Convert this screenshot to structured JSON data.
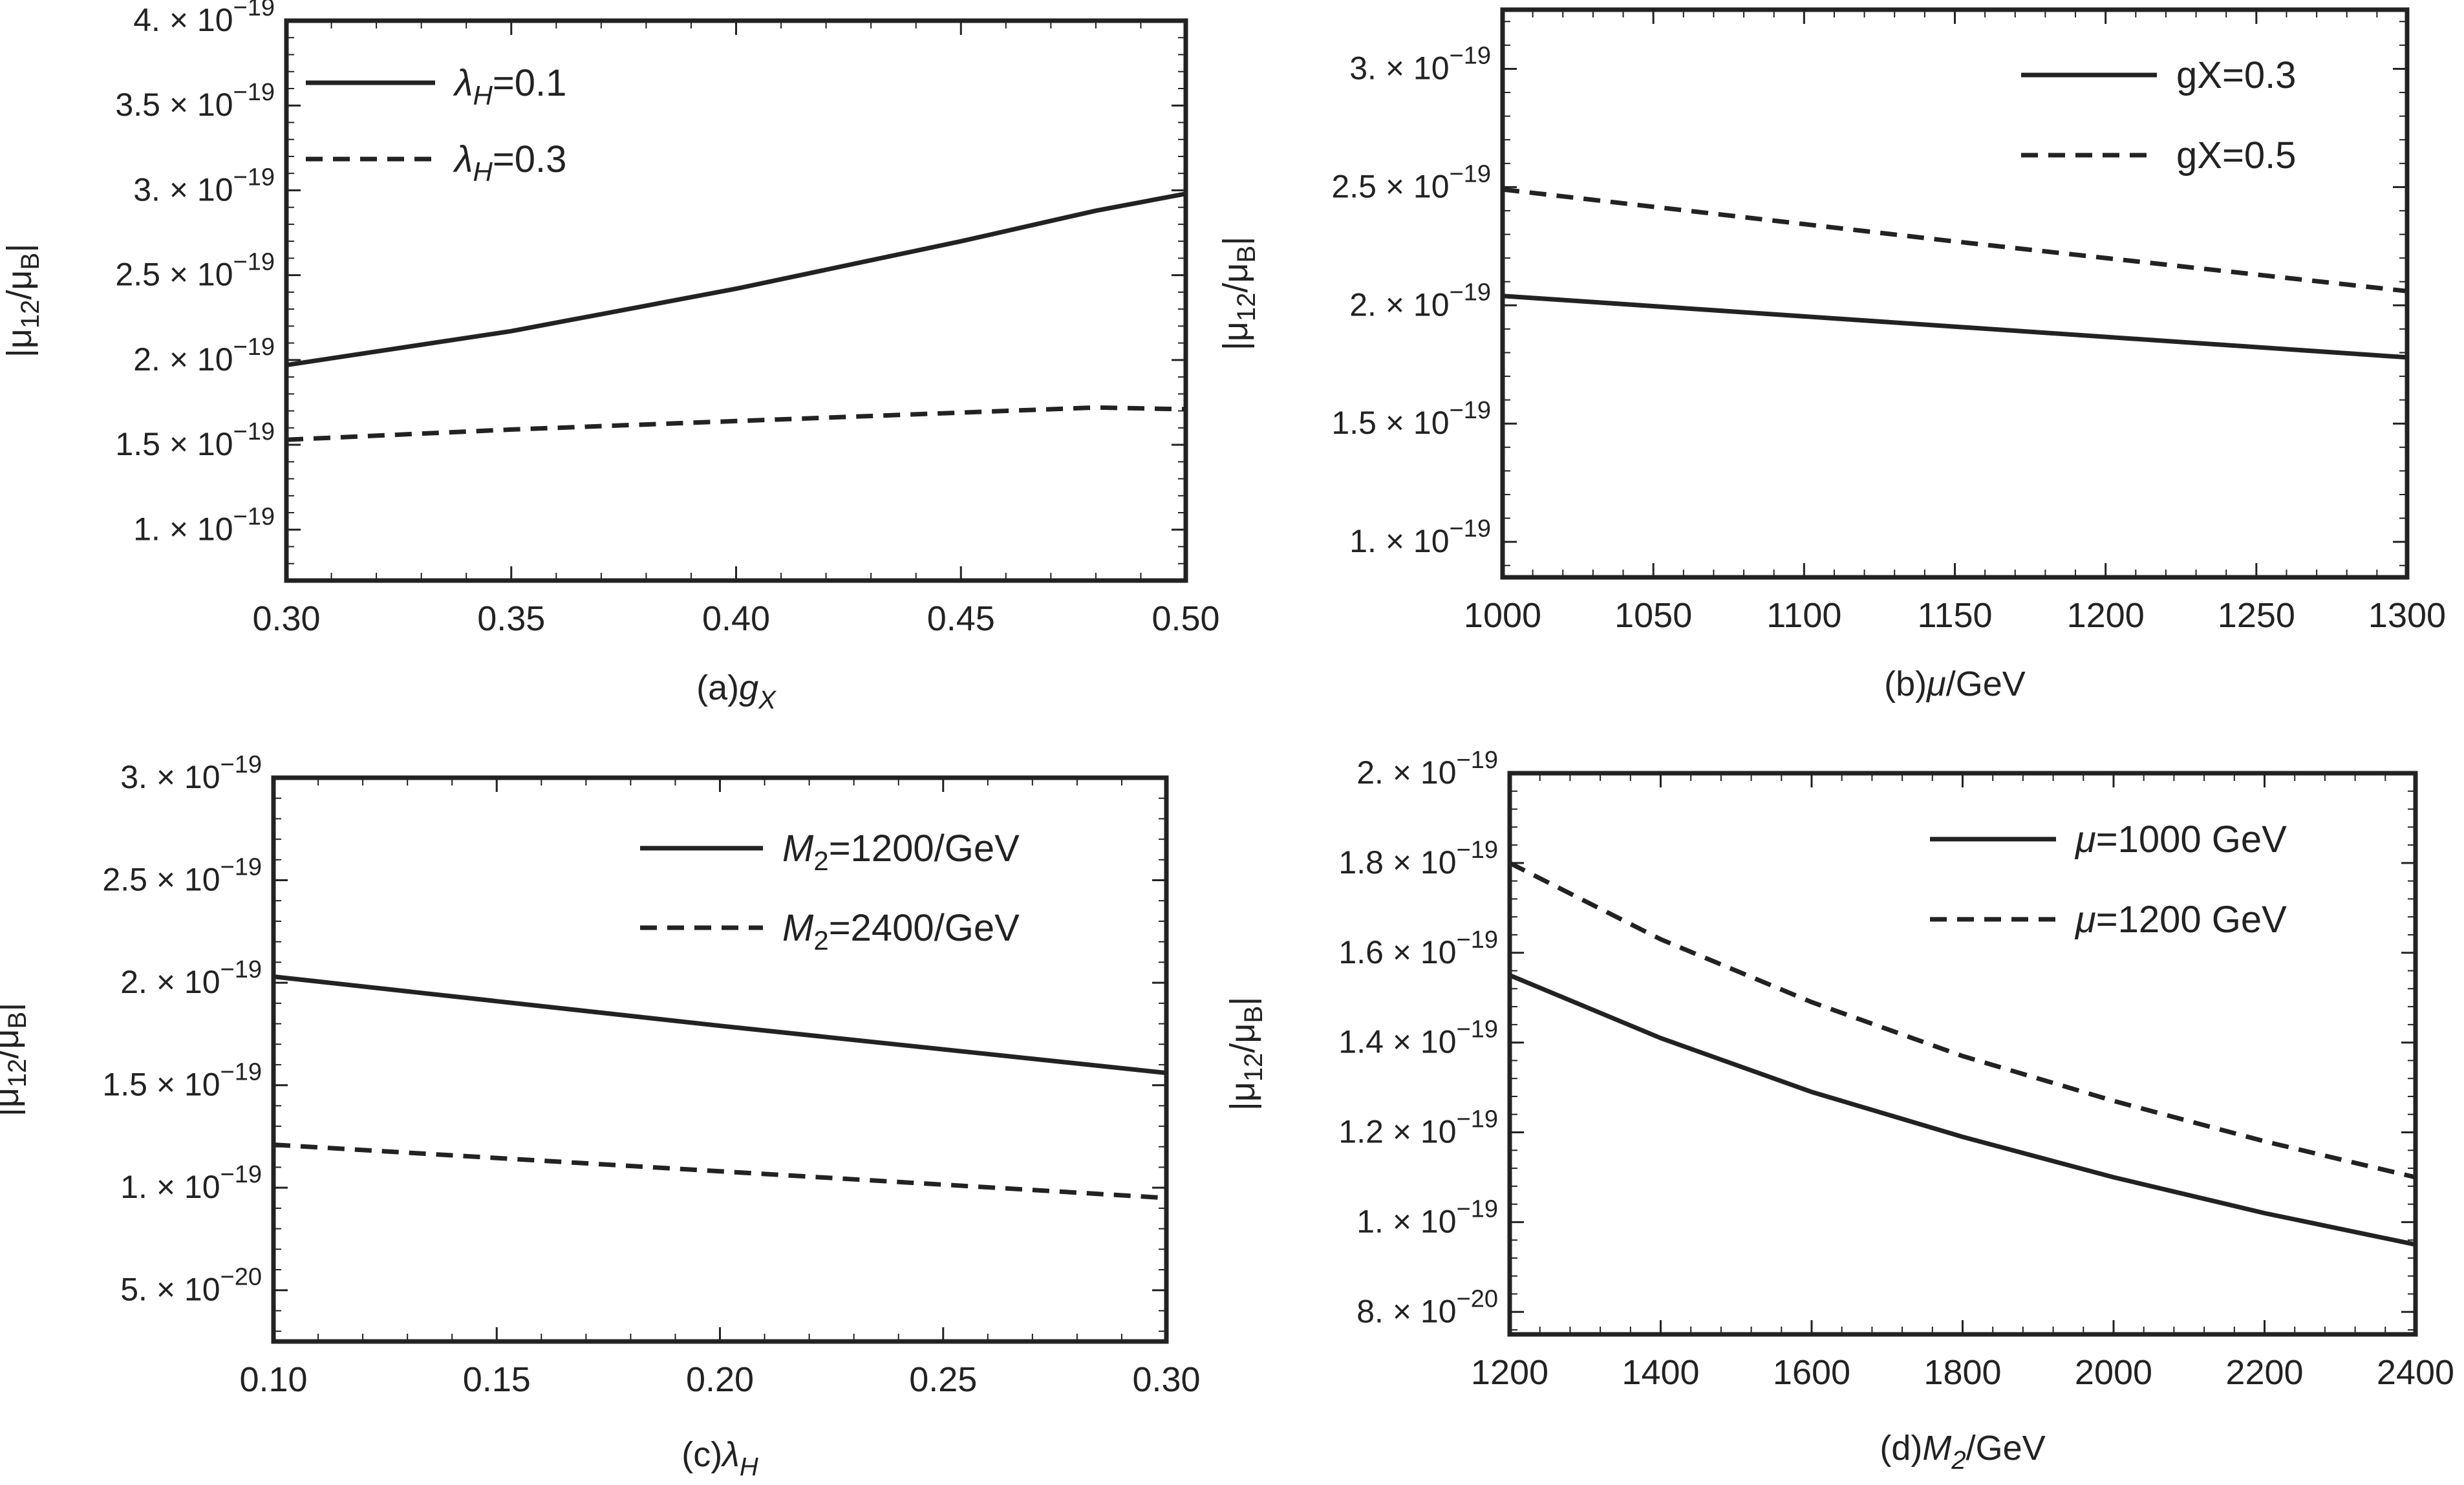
{
  "chart_data": [
    {
      "type": "line",
      "caption": "(a)",
      "xlabel": "g_X",
      "ylabel": "|μ12/μB|",
      "xlim": [
        0.3,
        0.5
      ],
      "ylim": [
        7e-20,
        4e-19
      ],
      "xticks": [
        0.3,
        0.35,
        0.4,
        0.45,
        0.5
      ],
      "xtick_labels": [
        "0.30",
        "0.35",
        "0.40",
        "0.45",
        "0.50"
      ],
      "yticks": [
        1e-19,
        1.5e-19,
        2e-19,
        2.5e-19,
        3e-19,
        3.5e-19,
        4e-19
      ],
      "ytick_labels": [
        [
          "1.",
          "-19"
        ],
        [
          "1.5",
          "-19"
        ],
        [
          "2.",
          "-19"
        ],
        [
          "2.5",
          "-19"
        ],
        [
          "3.",
          "-19"
        ],
        [
          "3.5",
          "-19"
        ],
        [
          "4.",
          "-19"
        ]
      ],
      "legend_position": "top-left",
      "series": [
        {
          "name": "λH=0.1",
          "legend_prefix": "λ",
          "legend_sub": "H",
          "legend_suffix": "=0.1",
          "style": "solid",
          "x": [
            0.3,
            0.35,
            0.4,
            0.45,
            0.48,
            0.5
          ],
          "y": [
            1.97e-19,
            2.17e-19,
            2.42e-19,
            2.7e-19,
            2.88e-19,
            2.98e-19
          ]
        },
        {
          "name": "λH=0.3",
          "legend_prefix": "λ",
          "legend_sub": "H",
          "legend_suffix": "=0.3",
          "style": "dashed",
          "x": [
            0.3,
            0.35,
            0.4,
            0.45,
            0.48,
            0.5
          ],
          "y": [
            1.53e-19,
            1.59e-19,
            1.64e-19,
            1.69e-19,
            1.72e-19,
            1.71e-19
          ]
        }
      ]
    },
    {
      "type": "line",
      "caption": "(b)",
      "xlabel": "μ/GeV",
      "ylabel": "|μ12/μB|",
      "xlim": [
        1000,
        1300
      ],
      "ylim": [
        8.5e-20,
        3.25e-19
      ],
      "xticks": [
        1000,
        1050,
        1100,
        1150,
        1200,
        1250,
        1300
      ],
      "xtick_labels": [
        "1000",
        "1050",
        "1100",
        "1150",
        "1200",
        "1250",
        "1300"
      ],
      "yticks": [
        1e-19,
        1.5e-19,
        2e-19,
        2.5e-19,
        3e-19
      ],
      "ytick_labels": [
        [
          "1.",
          "-19"
        ],
        [
          "1.5",
          "-19"
        ],
        [
          "2.",
          "-19"
        ],
        [
          "2.5",
          "-19"
        ],
        [
          "3.",
          "-19"
        ]
      ],
      "legend_position": "top-right",
      "series": [
        {
          "name": "gX=0.3",
          "legend_prefix": "gX=0.3",
          "legend_sub": "",
          "legend_suffix": "",
          "style": "solid",
          "x": [
            1000,
            1150,
            1300
          ],
          "y": [
            2.04e-19,
            1.91e-19,
            1.78e-19
          ]
        },
        {
          "name": "gX=0.5",
          "legend_prefix": "gX=0.5",
          "legend_sub": "",
          "legend_suffix": "",
          "style": "dashed",
          "x": [
            1000,
            1150,
            1300
          ],
          "y": [
            2.49e-19,
            2.27e-19,
            2.06e-19
          ]
        }
      ]
    },
    {
      "type": "line",
      "caption": "(c)",
      "xlabel": "λ_H",
      "ylabel": "|μ12/μB|",
      "xlim": [
        0.1,
        0.3
      ],
      "ylim": [
        2.5e-20,
        3e-19
      ],
      "xticks": [
        0.1,
        0.15,
        0.2,
        0.25,
        0.3
      ],
      "xtick_labels": [
        "0.10",
        "0.15",
        "0.20",
        "0.25",
        "0.30"
      ],
      "yticks": [
        5e-20,
        1e-19,
        1.5e-19,
        2e-19,
        2.5e-19,
        3e-19
      ],
      "ytick_labels": [
        [
          "5.",
          "-20"
        ],
        [
          "1.",
          "-19"
        ],
        [
          "1.5",
          "-19"
        ],
        [
          "2.",
          "-19"
        ],
        [
          "2.5",
          "-19"
        ],
        [
          "3.",
          "-19"
        ]
      ],
      "legend_position": "top-right",
      "series": [
        {
          "name": "M2=1200/GeV",
          "legend_prefix": "M",
          "legend_sub": "2",
          "legend_suffix": "=1200/GeV",
          "style": "solid",
          "x": [
            0.1,
            0.2,
            0.3
          ],
          "y": [
            2.03e-19,
            1.79e-19,
            1.56e-19
          ]
        },
        {
          "name": "M2=2400/GeV",
          "legend_prefix": "M",
          "legend_sub": "2",
          "legend_suffix": "=2400/GeV",
          "style": "dashed",
          "x": [
            0.1,
            0.2,
            0.3
          ],
          "y": [
            1.21e-19,
            1.08e-19,
            9.5e-20
          ]
        }
      ]
    },
    {
      "type": "line",
      "caption": "(d)",
      "xlabel": "M_2/GeV",
      "ylabel": "|μ12/μB|",
      "xlim": [
        1200,
        2400
      ],
      "ylim": [
        7.5e-20,
        2e-19
      ],
      "xticks": [
        1200,
        1400,
        1600,
        1800,
        2000,
        2200,
        2400
      ],
      "xtick_labels": [
        "1200",
        "1400",
        "1600",
        "1800",
        "2000",
        "2200",
        "2400"
      ],
      "yticks": [
        8e-20,
        1e-19,
        1.2e-19,
        1.4e-19,
        1.6e-19,
        1.8e-19,
        2e-19
      ],
      "ytick_labels": [
        [
          "8.",
          "-20"
        ],
        [
          "1.",
          "-19"
        ],
        [
          "1.2",
          "-19"
        ],
        [
          "1.4",
          "-19"
        ],
        [
          "1.6",
          "-19"
        ],
        [
          "1.8",
          "-19"
        ],
        [
          "2.",
          "-19"
        ]
      ],
      "legend_position": "top-right",
      "series": [
        {
          "name": "μ=1000 GeV",
          "legend_prefix": "μ",
          "legend_sub": "",
          "legend_suffix": "=1000 GeV",
          "style": "solid",
          "x": [
            1200,
            1400,
            1600,
            1800,
            2000,
            2200,
            2400
          ],
          "y": [
            1.55e-19,
            1.41e-19,
            1.29e-19,
            1.19e-19,
            1.1e-19,
            1.02e-19,
            9.5e-20
          ]
        },
        {
          "name": "μ=1200 GeV",
          "legend_prefix": "μ",
          "legend_sub": "",
          "legend_suffix": "=1200 GeV",
          "style": "dashed",
          "x": [
            1200,
            1400,
            1600,
            1800,
            2000,
            2200,
            2400
          ],
          "y": [
            1.8e-19,
            1.63e-19,
            1.49e-19,
            1.37e-19,
            1.27e-19,
            1.18e-19,
            1.1e-19
          ]
        }
      ]
    }
  ]
}
